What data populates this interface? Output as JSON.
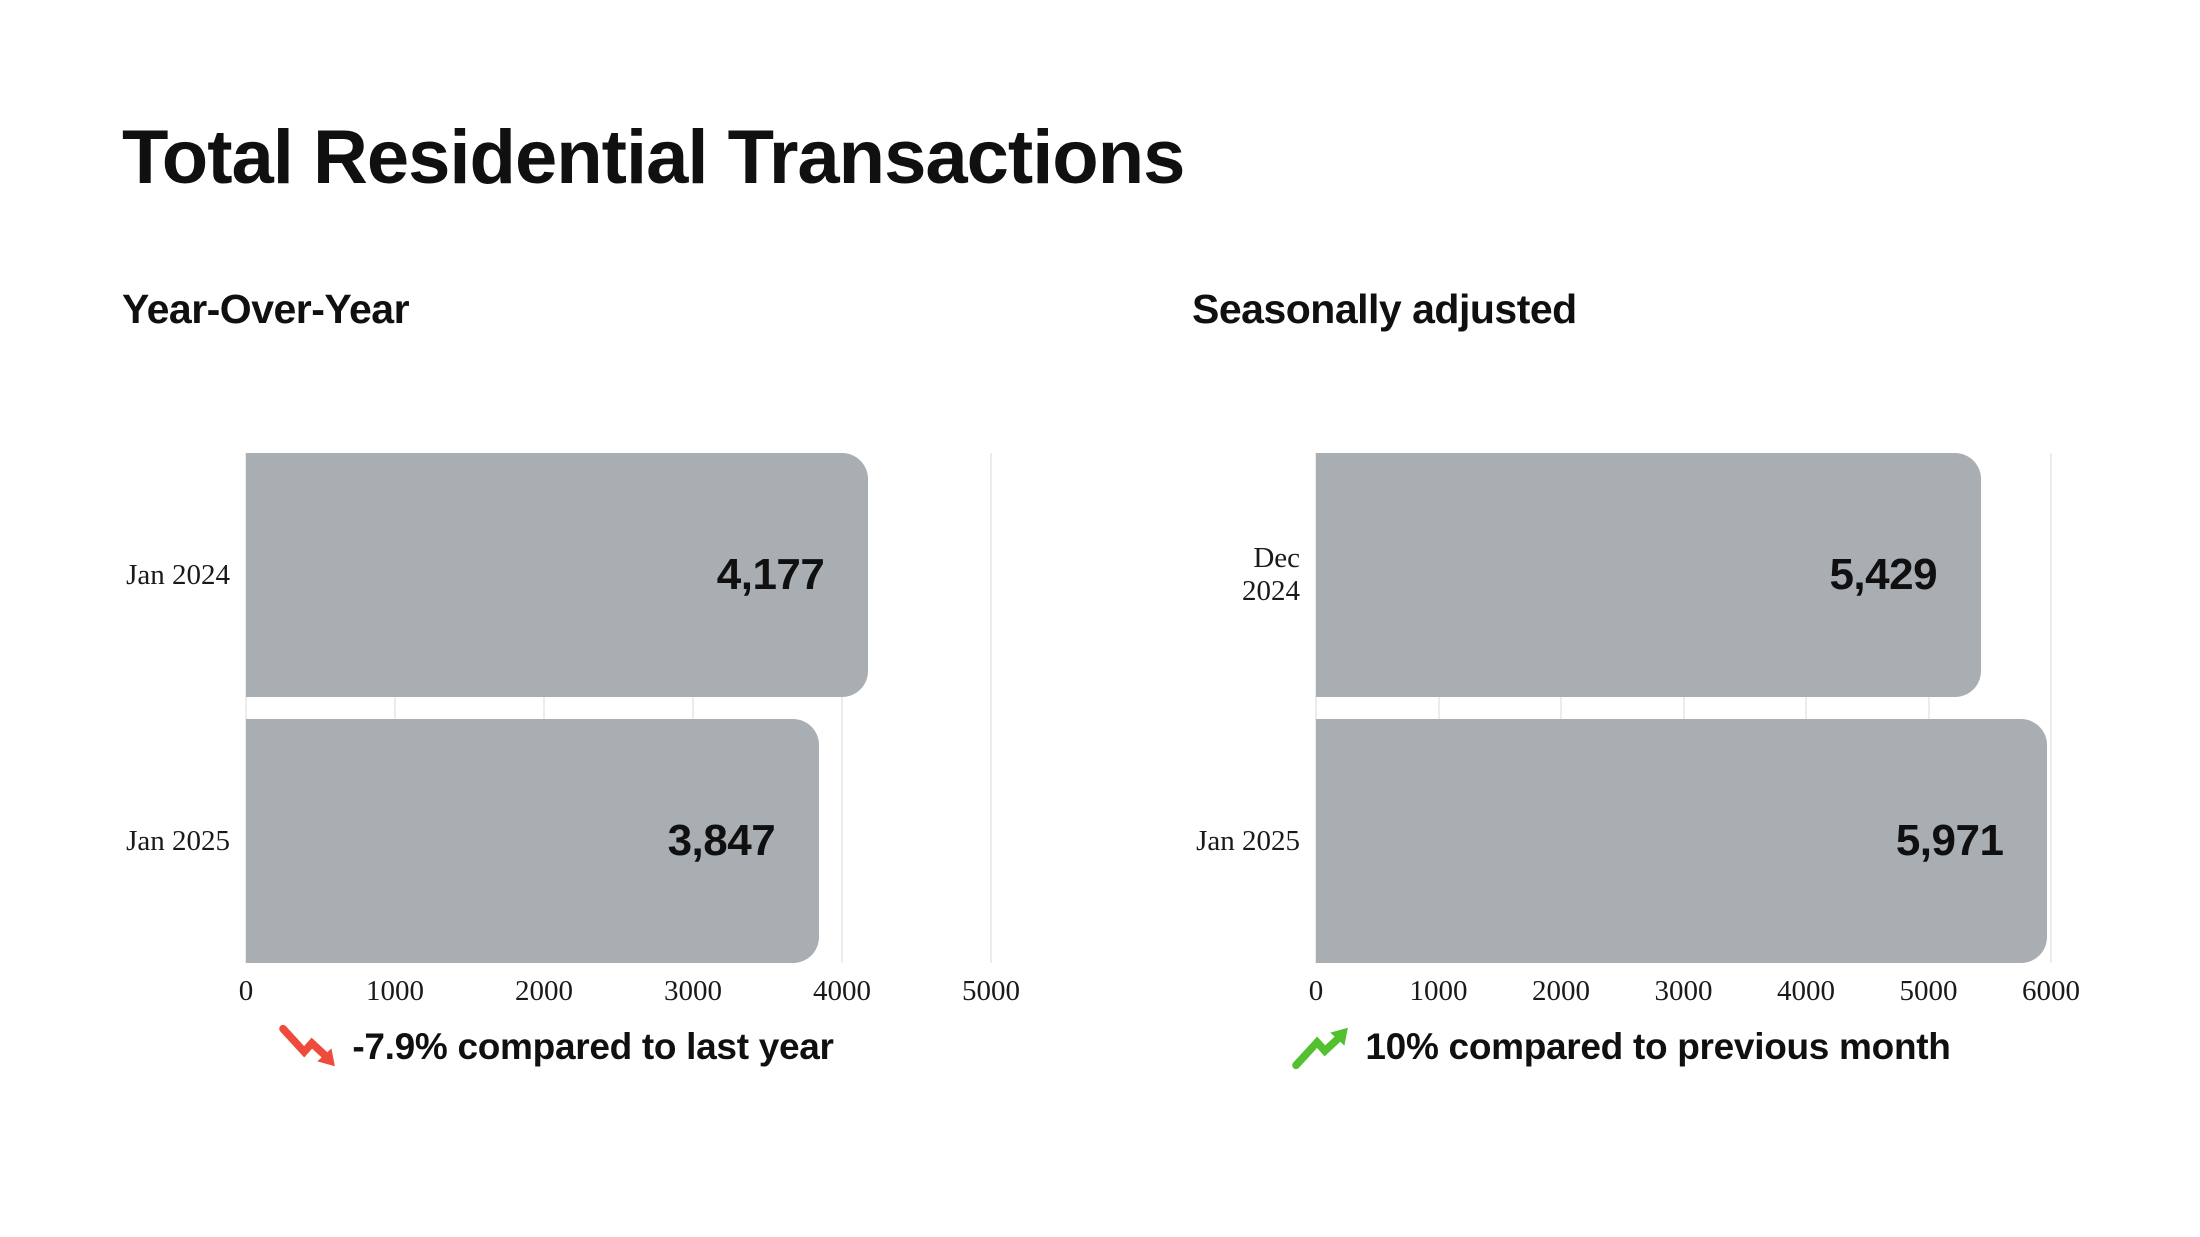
{
  "page": {
    "title": "Total Residential Transactions"
  },
  "colors": {
    "bar": "#a9aeb3",
    "negative_trend": "#ee4b3c",
    "positive_trend": "#53c02f",
    "text": "#101010",
    "gridline": "#ececec"
  },
  "chart_data": [
    {
      "type": "bar",
      "orientation": "horizontal",
      "title": "Year-Over-Year",
      "categories": [
        "Jan 2024",
        "Jan 2025"
      ],
      "values": [
        4177,
        3847
      ],
      "value_labels": [
        "4,177",
        "3,847"
      ],
      "xlabel": "",
      "ylabel": "",
      "xlim": [
        0,
        5000
      ],
      "x_ticks": [
        0,
        1000,
        2000,
        3000,
        4000,
        5000
      ],
      "grid": true,
      "legend": false,
      "annotation": {
        "text": "-7.9% compared to last year",
        "trend": "down"
      }
    },
    {
      "type": "bar",
      "orientation": "horizontal",
      "title": "Seasonally adjusted",
      "categories": [
        "Dec 2024",
        "Jan 2025"
      ],
      "values": [
        5429,
        5971
      ],
      "value_labels": [
        "5,429",
        "5,971"
      ],
      "xlabel": "",
      "ylabel": "",
      "xlim": [
        0,
        6000
      ],
      "x_ticks": [
        0,
        1000,
        2000,
        3000,
        4000,
        5000,
        6000
      ],
      "grid": true,
      "legend": false,
      "annotation": {
        "text": "10% compared to previous month",
        "trend": "up"
      }
    }
  ]
}
